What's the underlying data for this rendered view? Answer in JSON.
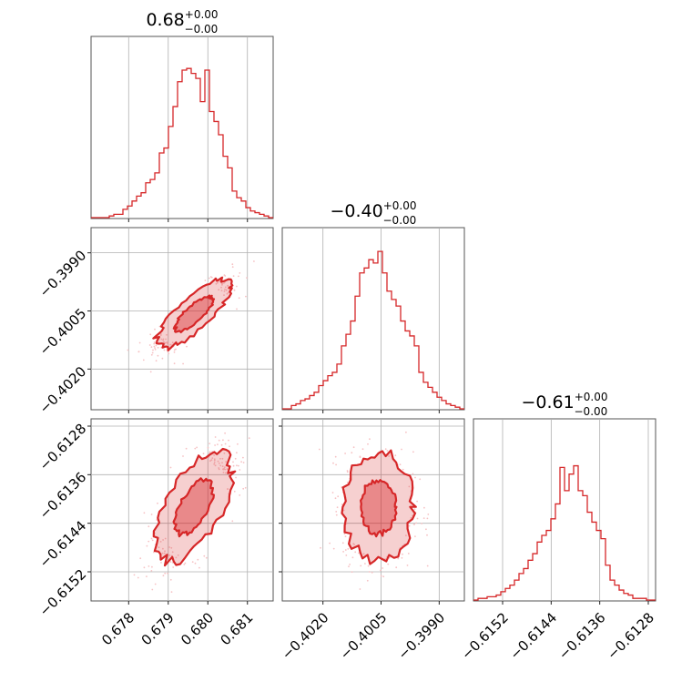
{
  "colors": {
    "series": "#d62728"
  },
  "chart_data": {
    "type": "corner",
    "parameters": [
      {
        "value": "0.68",
        "plus": "+0.00",
        "minus": "−0.00",
        "ticks": [
          0.678,
          0.679,
          0.68,
          0.681
        ],
        "tick_labels": [
          "0.678",
          "0.679",
          "0.680",
          "0.681"
        ],
        "range": [
          0.67705,
          0.68165
        ],
        "mean": 0.67965,
        "sd": 0.00048
      },
      {
        "value": "−0.40",
        "plus": "+0.00",
        "minus": "−0.00",
        "ticks": [
          -0.402,
          -0.4005,
          -0.399
        ],
        "tick_labels": [
          "−0.4020",
          "−0.4005",
          "−0.3990"
        ],
        "range": [
          -0.40305,
          -0.39835
        ],
        "mean": -0.40057,
        "sd": 0.00045
      },
      {
        "value": "−0.61",
        "plus": "+0.00",
        "minus": "−0.00",
        "ticks": [
          -0.6152,
          -0.6144,
          -0.6136,
          -0.6128
        ],
        "tick_labels": [
          "−0.6152",
          "−0.6144",
          "−0.6136",
          "−0.6128"
        ],
        "range": [
          -0.61568,
          -0.61268
        ],
        "mean": -0.61413,
        "sd": 0.00045
      }
    ],
    "correlations": {
      "1-0": 0.8,
      "2-0": 0.6,
      "2-1": 0.0
    },
    "histograms": [
      [
        0,
        0,
        0,
        0,
        0.01,
        0.02,
        0.02,
        0.05,
        0.07,
        0.1,
        0.13,
        0.15,
        0.21,
        0.23,
        0.27,
        0.39,
        0.42,
        0.55,
        0.67,
        0.82,
        0.89,
        0.9,
        0.87,
        0.84,
        0.7,
        0.89,
        0.64,
        0.58,
        0.5,
        0.37,
        0.3,
        0.16,
        0.12,
        0.1,
        0.06,
        0.04,
        0.03,
        0.02,
        0.01,
        0
      ],
      [
        0,
        0,
        0.02,
        0.03,
        0.05,
        0.06,
        0.08,
        0.1,
        0.14,
        0.17,
        0.2,
        0.22,
        0.27,
        0.38,
        0.45,
        0.53,
        0.68,
        0.82,
        0.85,
        0.9,
        0.88,
        0.95,
        0.82,
        0.71,
        0.66,
        0.62,
        0.53,
        0.47,
        0.44,
        0.38,
        0.22,
        0.16,
        0.13,
        0.1,
        0.07,
        0.05,
        0.03,
        0.02,
        0.01,
        0
      ],
      [
        0,
        0.01,
        0.01,
        0.02,
        0.02,
        0.03,
        0.05,
        0.07,
        0.09,
        0.12,
        0.16,
        0.19,
        0.24,
        0.28,
        0.35,
        0.39,
        0.42,
        0.49,
        0.58,
        0.8,
        0.66,
        0.76,
        0.81,
        0.66,
        0.63,
        0.53,
        0.47,
        0.42,
        0.37,
        0.21,
        0.12,
        0.09,
        0.06,
        0.04,
        0.03,
        0.01,
        0.01,
        0.01,
        0,
        0
      ]
    ]
  }
}
